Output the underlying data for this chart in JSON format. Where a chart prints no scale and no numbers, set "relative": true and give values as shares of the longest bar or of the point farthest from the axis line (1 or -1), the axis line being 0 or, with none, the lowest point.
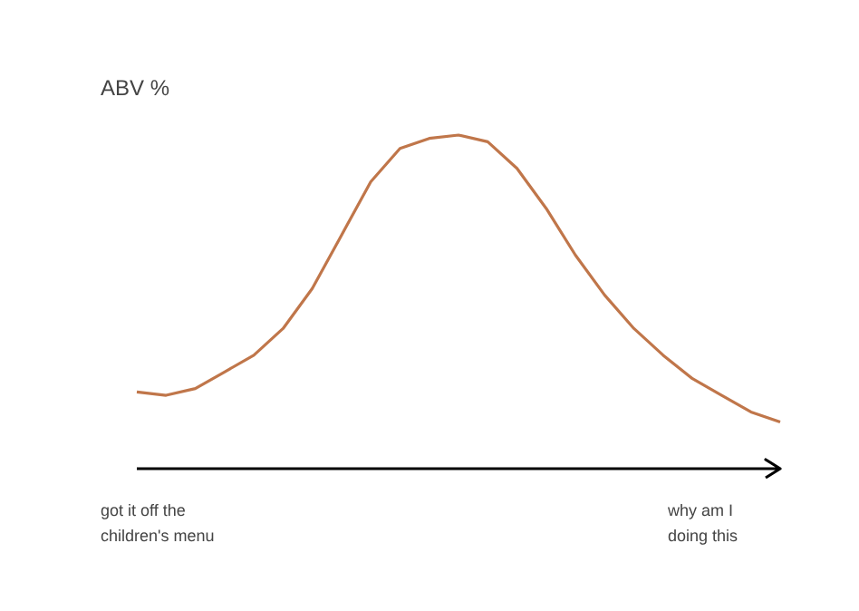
{
  "chart_data": {
    "type": "line",
    "relative": true,
    "ylabel": "ABV %",
    "color": "#c0764a",
    "categories": [
      null,
      null,
      null,
      null,
      null,
      null,
      null,
      null,
      null,
      null,
      null,
      null,
      null,
      null,
      null,
      null,
      null,
      null,
      null,
      null,
      null,
      null,
      null
    ],
    "values": [
      0.23,
      0.22,
      0.24,
      0.29,
      0.34,
      0.42,
      0.54,
      0.7,
      0.86,
      0.96,
      0.99,
      1.0,
      0.98,
      0.9,
      0.78,
      0.64,
      0.52,
      0.42,
      0.34,
      0.27,
      0.22,
      0.17,
      0.14
    ],
    "annotations": [
      "got it off the\nchildren's menu",
      "why am I\ndoing this"
    ],
    "ref_lines": [
      {
        "axis": "y",
        "value": 0,
        "color": "#000000"
      }
    ]
  }
}
